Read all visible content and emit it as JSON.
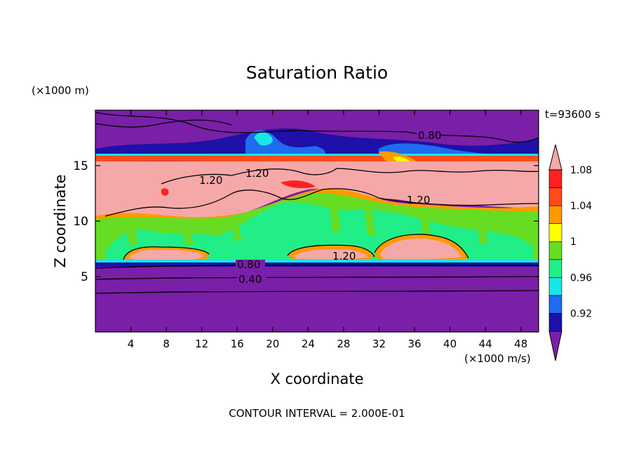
{
  "chart_data": {
    "type": "heatmap",
    "title": "Saturation Ratio",
    "xlabel": "X coordinate",
    "ylabel": "Z coordinate",
    "x_unit": "(×1000 m/s)",
    "y_unit": "(×1000 m)",
    "time_label": "t=93600 s",
    "footer": "CONTOUR INTERVAL = 2.000E-01",
    "xlim": [
      0,
      50
    ],
    "ylim": [
      0,
      20
    ],
    "x_ticks": [
      "4",
      "8",
      "12",
      "16",
      "20",
      "24",
      "28",
      "32",
      "36",
      "40",
      "44",
      "48"
    ],
    "y_ticks": [
      "5",
      "10",
      "15"
    ],
    "colorbar": {
      "levels": [
        "0.92",
        "0.96",
        "1",
        "1.04",
        "1.08"
      ],
      "colors": [
        "#7a1fa8",
        "#1e10a8",
        "#1e6cf0",
        "#18e6e6",
        "#22ee88",
        "#66dd22",
        "#ffff00",
        "#ff9a00",
        "#ff4a1a",
        "#ff2020",
        "#f6a8a8"
      ]
    },
    "contour_labels": [
      "0.80",
      "1.20",
      "1.20",
      "1.20",
      "1.20",
      "0.80",
      "0.40"
    ]
  }
}
